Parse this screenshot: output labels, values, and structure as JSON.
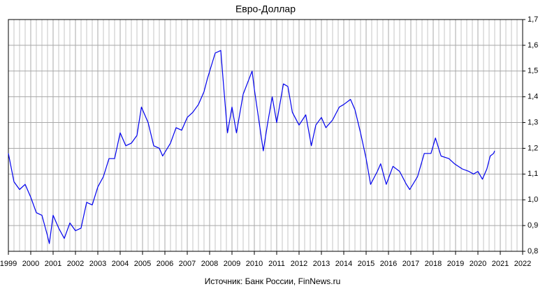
{
  "chart_data": {
    "type": "line",
    "title": "Евро-Доллар",
    "source": "Источник: Банк России, FinNews.ru",
    "color": "#0000ee",
    "grid": true,
    "x": [
      1999.0,
      1999.25,
      1999.5,
      1999.75,
      2000.0,
      2000.25,
      2000.5,
      2000.75,
      2000.83,
      2001.0,
      2001.25,
      2001.5,
      2001.75,
      2002.0,
      2002.25,
      2002.5,
      2002.75,
      2003.0,
      2003.25,
      2003.5,
      2003.75,
      2004.0,
      2004.25,
      2004.5,
      2004.75,
      2004.95,
      2005.25,
      2005.5,
      2005.75,
      2005.9,
      2006.25,
      2006.5,
      2006.75,
      2007.0,
      2007.25,
      2007.5,
      2007.75,
      2007.9,
      2008.25,
      2008.5,
      2008.6,
      2008.8,
      2009.0,
      2009.2,
      2009.5,
      2009.9,
      2010.0,
      2010.4,
      2010.6,
      2010.8,
      2011.0,
      2011.3,
      2011.5,
      2011.7,
      2012.0,
      2012.3,
      2012.55,
      2012.75,
      2013.0,
      2013.2,
      2013.5,
      2013.8,
      2014.0,
      2014.3,
      2014.5,
      2014.75,
      2015.0,
      2015.2,
      2015.5,
      2015.65,
      2015.9,
      2016.2,
      2016.5,
      2016.8,
      2016.95,
      2017.3,
      2017.6,
      2017.9,
      2018.1,
      2018.35,
      2018.7,
      2018.95,
      2019.3,
      2019.6,
      2019.8,
      2020.0,
      2020.2,
      2020.4,
      2020.55,
      2020.7,
      2020.75
    ],
    "values": [
      1.18,
      1.07,
      1.04,
      1.06,
      1.01,
      0.95,
      0.94,
      0.86,
      0.83,
      0.94,
      0.89,
      0.85,
      0.91,
      0.88,
      0.89,
      0.99,
      0.98,
      1.05,
      1.09,
      1.16,
      1.16,
      1.26,
      1.21,
      1.22,
      1.25,
      1.36,
      1.3,
      1.21,
      1.2,
      1.17,
      1.22,
      1.28,
      1.27,
      1.32,
      1.34,
      1.37,
      1.42,
      1.47,
      1.57,
      1.58,
      1.47,
      1.26,
      1.36,
      1.26,
      1.41,
      1.5,
      1.43,
      1.19,
      1.3,
      1.4,
      1.3,
      1.45,
      1.44,
      1.34,
      1.29,
      1.33,
      1.21,
      1.29,
      1.32,
      1.28,
      1.31,
      1.36,
      1.37,
      1.39,
      1.35,
      1.26,
      1.16,
      1.06,
      1.11,
      1.14,
      1.06,
      1.13,
      1.11,
      1.06,
      1.04,
      1.09,
      1.18,
      1.18,
      1.24,
      1.17,
      1.16,
      1.14,
      1.12,
      1.11,
      1.1,
      1.11,
      1.08,
      1.12,
      1.17,
      1.18,
      1.19
    ],
    "xlim": [
      1999,
      2022
    ],
    "xticks": [
      1999,
      2000,
      2001,
      2002,
      2003,
      2004,
      2005,
      2006,
      2007,
      2008,
      2009,
      2010,
      2011,
      2012,
      2013,
      2014,
      2015,
      2016,
      2017,
      2018,
      2019,
      2020,
      2021,
      2022
    ],
    "ylim": [
      0.8,
      1.7
    ],
    "yticks": [
      {
        "value": 0.8,
        "label": "0,8"
      },
      {
        "value": 0.9,
        "label": "0,9"
      },
      {
        "value": 1.0,
        "label": "1,0"
      },
      {
        "value": 1.1,
        "label": "1,1"
      },
      {
        "value": 1.2,
        "label": "1,2"
      },
      {
        "value": 1.3,
        "label": "1,3"
      },
      {
        "value": 1.4,
        "label": "1,4"
      },
      {
        "value": 1.5,
        "label": "1,5"
      },
      {
        "value": 1.6,
        "label": "1,6"
      },
      {
        "value": 1.7,
        "label": "1,7"
      }
    ]
  }
}
